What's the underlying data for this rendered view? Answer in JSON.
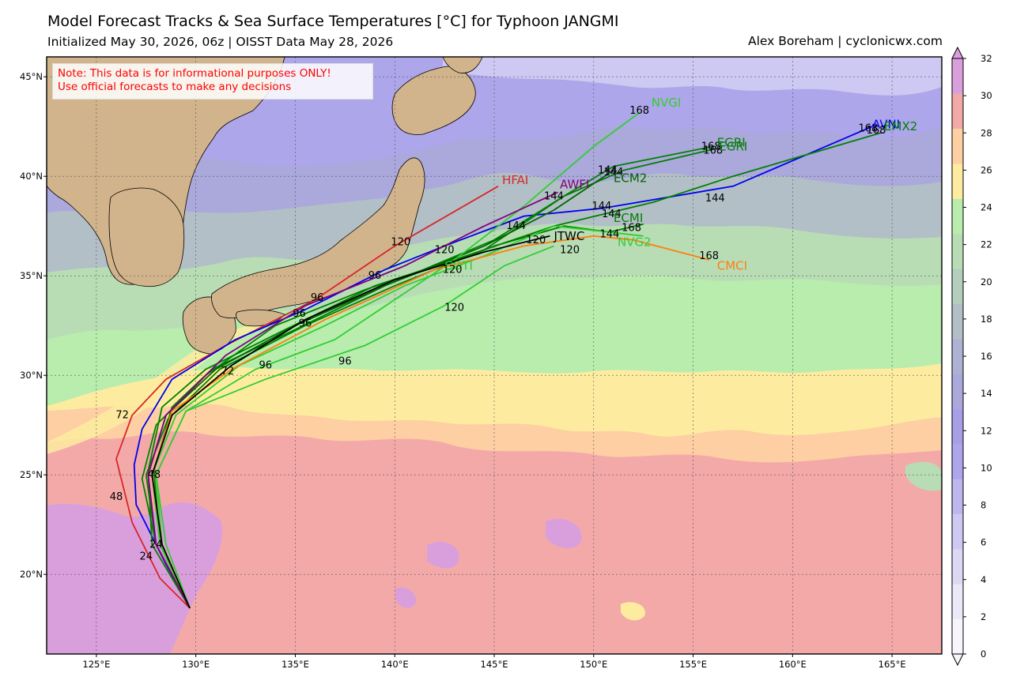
{
  "header": {
    "title": "Model Forecast Tracks & Sea Surface Temperatures [°C] for Typhoon JANGMI",
    "subtitle": "Initialized May 30, 2026, 06z | OISST Data May 28, 2026",
    "credit": "Alex Boreham | cyclonicwx.com"
  },
  "note": {
    "line1": "Note: This data is for informational purposes ONLY!",
    "line2": "Use official forecasts to make any decisions"
  },
  "map_extent": {
    "lon": [
      122.5,
      167.5
    ],
    "lat": [
      16,
      46
    ]
  },
  "axes": {
    "lon_ticks": [
      {
        "value": 125,
        "label": "125°E"
      },
      {
        "value": 130,
        "label": "130°E"
      },
      {
        "value": 135,
        "label": "135°E"
      },
      {
        "value": 140,
        "label": "140°E"
      },
      {
        "value": 145,
        "label": "145°E"
      },
      {
        "value": 150,
        "label": "150°E"
      },
      {
        "value": 155,
        "label": "155°E"
      },
      {
        "value": 160,
        "label": "160°E"
      },
      {
        "value": 165,
        "label": "165°E"
      }
    ],
    "lat_ticks": [
      {
        "value": 20,
        "label": "20°N"
      },
      {
        "value": 25,
        "label": "25°N"
      },
      {
        "value": 30,
        "label": "30°N"
      },
      {
        "value": 35,
        "label": "35°N"
      },
      {
        "value": 40,
        "label": "40°N"
      },
      {
        "value": 45,
        "label": "45°N"
      }
    ]
  },
  "colorbar": {
    "ticks": [
      "0",
      "2",
      "4",
      "6",
      "8",
      "10",
      "12",
      "14",
      "16",
      "18",
      "20",
      "22",
      "24",
      "26",
      "28",
      "30",
      "32"
    ],
    "colors": [
      "#f7f4fb",
      "#ebe8f7",
      "#dcd8f4",
      "#cdc9f2",
      "#bdb6ef",
      "#aea6ea",
      "#a79fe6",
      "#aba8dc",
      "#aeb2d2",
      "#b2bfc6",
      "#b5cdbd",
      "#b8ddb5",
      "#b8edae",
      "#fdeca0",
      "#fdcfa3",
      "#f4a9a9",
      "#d99fdc"
    ]
  },
  "storm": {
    "name": "JANGMI",
    "origin": {
      "lon": 129.7,
      "lat": 18.3
    }
  },
  "tracks": [
    {
      "id": "HFAI",
      "color": "#d62728",
      "pts": [
        [
          129.7,
          18.3
        ],
        [
          128.2,
          19.8
        ],
        [
          126.8,
          22.6
        ],
        [
          126.0,
          25.8
        ],
        [
          126.8,
          28.0
        ],
        [
          128.5,
          29.8
        ],
        [
          131.5,
          31.5
        ],
        [
          136.0,
          33.8
        ],
        [
          140.0,
          36.5
        ],
        [
          145.2,
          39.5
        ]
      ],
      "labels": [
        {
          "t": "24",
          "lon": 127.5,
          "lat": 20.9
        },
        {
          "t": "48",
          "lon": 126.0,
          "lat": 23.9
        },
        {
          "t": "72",
          "lon": 126.3,
          "lat": 28.0
        },
        {
          "t": "96",
          "lon": 136.1,
          "lat": 33.9
        },
        {
          "t": "120",
          "lon": 140.3,
          "lat": 36.7
        }
      ],
      "name_pos": {
        "lon": 145.4,
        "lat": 39.8
      }
    },
    {
      "id": "AVNI",
      "color": "#0000ee",
      "pts": [
        [
          129.7,
          18.3
        ],
        [
          128.5,
          20.5
        ],
        [
          127.0,
          23.5
        ],
        [
          126.9,
          25.5
        ],
        [
          127.3,
          27.3
        ],
        [
          128.8,
          29.8
        ],
        [
          132.0,
          31.8
        ],
        [
          135.5,
          33.3
        ],
        [
          139.5,
          35.3
        ],
        [
          142.5,
          36.5
        ],
        [
          146.5,
          38.0
        ],
        [
          150.5,
          38.4
        ],
        [
          157.0,
          39.5
        ],
        [
          164.0,
          42.5
        ]
      ],
      "labels": [
        {
          "t": "96",
          "lon": 135.2,
          "lat": 33.1
        },
        {
          "t": "120",
          "lon": 142.5,
          "lat": 36.3
        },
        {
          "t": "144",
          "lon": 150.4,
          "lat": 38.5
        },
        {
          "t": "144",
          "lon": 156.1,
          "lat": 38.9
        },
        {
          "t": "168",
          "lon": 163.8,
          "lat": 42.4
        }
      ],
      "name_pos": {
        "lon": 164.0,
        "lat": 42.6
      }
    },
    {
      "id": "EMX2",
      "color": "#008000",
      "pts": [
        [
          129.7,
          18.3
        ],
        [
          128.0,
          21.5
        ],
        [
          127.3,
          24.8
        ],
        [
          128.0,
          27.5
        ],
        [
          130.5,
          30.0
        ],
        [
          134.0,
          32.5
        ],
        [
          138.5,
          34.3
        ],
        [
          143.0,
          35.8
        ],
        [
          148.0,
          37.5
        ],
        [
          153.0,
          38.7
        ],
        [
          157.0,
          40.0
        ],
        [
          164.5,
          42.2
        ]
      ],
      "labels": [
        {
          "t": "168",
          "lon": 164.2,
          "lat": 42.3
        }
      ],
      "name_pos": {
        "lon": 164.6,
        "lat": 42.5
      }
    },
    {
      "id": "EGRI",
      "color": "#008000",
      "pts": [
        [
          129.7,
          18.3
        ],
        [
          127.8,
          21.5
        ],
        [
          127.6,
          25.2
        ],
        [
          128.3,
          28.4
        ],
        [
          130.5,
          30.3
        ],
        [
          134.5,
          32.3
        ],
        [
          139.0,
          34.5
        ],
        [
          144.5,
          36.3
        ],
        [
          148.5,
          39.0
        ],
        [
          151.0,
          40.5
        ],
        [
          156.0,
          41.5
        ]
      ],
      "labels": [
        {
          "t": "144",
          "lon": 150.7,
          "lat": 40.3
        },
        {
          "t": "168",
          "lon": 155.9,
          "lat": 41.5
        }
      ],
      "name_pos": {
        "lon": 156.2,
        "lat": 41.7
      }
    },
    {
      "id": "EGRI",
      "color": "#008000",
      "pts": [
        [
          129.7,
          18.3
        ],
        [
          128.2,
          21.5
        ],
        [
          127.9,
          25.2
        ],
        [
          128.8,
          28.4
        ],
        [
          130.8,
          30.3
        ],
        [
          135.0,
          32.3
        ],
        [
          139.5,
          34.5
        ],
        [
          145.0,
          36.8
        ],
        [
          148.5,
          39.0
        ],
        [
          151.5,
          40.3
        ],
        [
          156.2,
          41.4
        ]
      ],
      "labels": [
        {
          "t": "168",
          "lon": 156.0,
          "lat": 41.3
        }
      ],
      "name_pos": {
        "lon": 156.3,
        "lat": 41.5
      }
    },
    {
      "id": "ECM2",
      "color": "#006400",
      "pts": [
        [
          129.7,
          18.3
        ],
        [
          128.0,
          21.5
        ],
        [
          127.6,
          25.0
        ],
        [
          128.5,
          28.0
        ],
        [
          131.0,
          30.3
        ],
        [
          135.0,
          32.5
        ],
        [
          139.5,
          34.5
        ],
        [
          144.5,
          36.5
        ],
        [
          148.0,
          38.3
        ],
        [
          151.0,
          40.3
        ]
      ],
      "labels": [
        {
          "t": "144",
          "lon": 151.0,
          "lat": 40.2
        }
      ],
      "name_pos": {
        "lon": 151.0,
        "lat": 39.9
      }
    },
    {
      "id": "ECMI",
      "color": "#008000",
      "pts": [
        [
          129.7,
          18.3
        ],
        [
          128.0,
          21.5
        ],
        [
          127.5,
          25.0
        ],
        [
          128.6,
          27.8
        ],
        [
          131.2,
          30.3
        ],
        [
          135.5,
          32.5
        ],
        [
          140.0,
          34.5
        ],
        [
          145.0,
          36.5
        ],
        [
          148.5,
          37.5
        ],
        [
          150.8,
          37.2
        ],
        [
          152.5,
          37.6
        ]
      ],
      "labels": [
        {
          "t": "144",
          "lon": 150.9,
          "lat": 38.1
        }
      ],
      "name_pos": {
        "lon": 151.0,
        "lat": 37.9
      }
    },
    {
      "id": "NVG2",
      "color": "#32cd32",
      "pts": [
        [
          129.7,
          18.3
        ],
        [
          128.2,
          21.5
        ],
        [
          127.8,
          25.0
        ],
        [
          129.0,
          28.0
        ],
        [
          132.2,
          30.5
        ],
        [
          136.5,
          32.5
        ],
        [
          140.5,
          34.5
        ],
        [
          144.5,
          36.0
        ],
        [
          148.0,
          37.5
        ],
        [
          152.5,
          37.0
        ]
      ],
      "labels": [
        {
          "t": "168",
          "lon": 151.9,
          "lat": 37.4
        }
      ],
      "name_pos": {
        "lon": 151.2,
        "lat": 36.7
      }
    },
    {
      "id": "NVGI",
      "color": "#32cd32",
      "pts": [
        [
          129.7,
          18.3
        ],
        [
          128.5,
          21.5
        ],
        [
          128.0,
          25.0
        ],
        [
          129.5,
          28.2
        ],
        [
          133.0,
          30.3
        ],
        [
          137.0,
          31.8
        ],
        [
          140.0,
          33.8
        ],
        [
          143.0,
          35.8
        ],
        [
          146.5,
          38.5
        ],
        [
          150.0,
          41.5
        ],
        [
          152.3,
          43.2
        ]
      ],
      "labels": [
        {
          "t": "144",
          "lon": 146.1,
          "lat": 37.5
        },
        {
          "t": "168",
          "lon": 152.3,
          "lat": 43.3
        }
      ],
      "name_pos": {
        "lon": 152.9,
        "lat": 43.7
      }
    },
    {
      "id": "COTI",
      "color": "#32cd32",
      "pts": [
        [
          129.7,
          18.3
        ],
        [
          128.3,
          21.5
        ],
        [
          128.0,
          25.0
        ],
        [
          129.5,
          28.2
        ],
        [
          133.5,
          29.8
        ],
        [
          138.5,
          31.5
        ],
        [
          142.5,
          33.5
        ],
        [
          145.5,
          35.5
        ],
        [
          148.0,
          36.5
        ]
      ],
      "labels": [
        {
          "t": "96",
          "lon": 133.5,
          "lat": 30.5
        },
        {
          "t": "96",
          "lon": 137.5,
          "lat": 30.7
        },
        {
          "t": "120",
          "lon": 143.0,
          "lat": 33.4
        }
      ],
      "name_pos": {
        "lon": 142.5,
        "lat": 35.5
      }
    },
    {
      "id": "CMCI",
      "color": "#ff7f0e",
      "pts": [
        [
          129.7,
          18.3
        ],
        [
          128.3,
          21.5
        ],
        [
          127.8,
          25.0
        ],
        [
          128.8,
          28.2
        ],
        [
          131.8,
          30.3
        ],
        [
          136.5,
          32.8
        ],
        [
          142.0,
          35.3
        ],
        [
          146.5,
          36.5
        ],
        [
          150.0,
          37.0
        ],
        [
          152.0,
          36.8
        ],
        [
          155.8,
          35.8
        ]
      ],
      "labels": [
        {
          "t": "120",
          "lon": 142.9,
          "lat": 35.3
        },
        {
          "t": "120",
          "lon": 148.8,
          "lat": 36.3
        },
        {
          "t": "144",
          "lon": 150.8,
          "lat": 37.1
        },
        {
          "t": "168",
          "lon": 155.8,
          "lat": 36.0
        }
      ],
      "name_pos": {
        "lon": 156.2,
        "lat": 35.5
      }
    },
    {
      "id": "AWFI",
      "color": "#800080",
      "pts": [
        [
          129.7,
          18.3
        ],
        [
          128.0,
          21.5
        ],
        [
          127.6,
          25.0
        ],
        [
          128.5,
          28.0
        ],
        [
          131.5,
          31.0
        ],
        [
          135.5,
          33.5
        ],
        [
          140.5,
          35.5
        ],
        [
          144.5,
          37.5
        ],
        [
          148.2,
          39.2
        ]
      ],
      "labels": [
        {
          "t": "96",
          "lon": 139.0,
          "lat": 35.0
        },
        {
          "t": "144",
          "lon": 148.0,
          "lat": 39.0
        }
      ],
      "name_pos": {
        "lon": 148.3,
        "lat": 39.6
      }
    },
    {
      "id": "JTWC",
      "color": "#000000",
      "pts": [
        [
          129.7,
          18.3
        ],
        [
          128.3,
          21.5
        ],
        [
          127.8,
          25.0
        ],
        [
          128.8,
          28.0
        ],
        [
          131.8,
          30.5
        ],
        [
          135.5,
          32.8
        ],
        [
          140.0,
          34.8
        ],
        [
          144.5,
          36.2
        ],
        [
          147.8,
          37.0
        ]
      ],
      "labels": [
        {
          "t": "24",
          "lon": 128.0,
          "lat": 21.5
        },
        {
          "t": "48",
          "lon": 127.9,
          "lat": 25.0
        },
        {
          "t": "72",
          "lon": 131.6,
          "lat": 30.2
        },
        {
          "t": "96",
          "lon": 135.5,
          "lat": 32.6
        },
        {
          "t": "120",
          "lon": 147.1,
          "lat": 36.8
        }
      ],
      "name_pos": {
        "lon": 148.0,
        "lat": 37.0
      }
    }
  ]
}
